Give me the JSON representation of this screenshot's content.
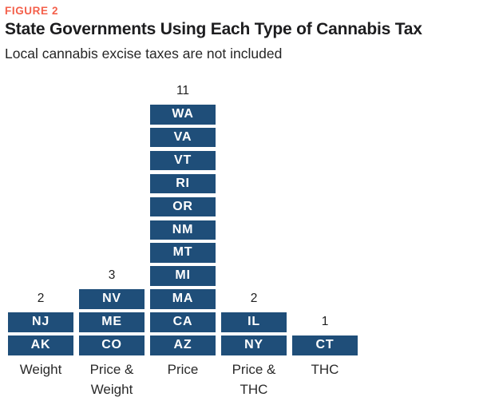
{
  "figure_label": "FIGURE 2",
  "title": "State Governments Using Each Type of Cannabis Tax",
  "subtitle": "Local cannabis excise taxes are not included",
  "colors": {
    "figure_label": "#f4604b",
    "block_fill": "#1f4e79",
    "block_text": "#ffffff",
    "title_text": "#1d1d1f"
  },
  "chart_data": {
    "type": "bar",
    "title": "State Governments Using Each Type of Cannabis Tax",
    "subtitle": "Local cannabis excise taxes are not included",
    "categories": [
      "Weight",
      "Price & Weight",
      "Price",
      "Price & THC",
      "THC"
    ],
    "values": [
      2,
      3,
      11,
      2,
      1
    ],
    "columns": [
      {
        "label": "Weight",
        "count": "2",
        "states": [
          "NJ",
          "AK"
        ]
      },
      {
        "label": "Price & Weight",
        "count": "3",
        "states": [
          "NV",
          "ME",
          "CO"
        ]
      },
      {
        "label": "Price",
        "count": "11",
        "states": [
          "WA",
          "VA",
          "VT",
          "RI",
          "OR",
          "NM",
          "MT",
          "MI",
          "MA",
          "CA",
          "AZ"
        ]
      },
      {
        "label": "Price & THC",
        "count": "2",
        "states": [
          "IL",
          "NY"
        ]
      },
      {
        "label": "THC",
        "count": "1",
        "states": [
          "CT"
        ]
      }
    ],
    "legend": false,
    "grid": false,
    "ylabel": "",
    "xlabel": ""
  }
}
